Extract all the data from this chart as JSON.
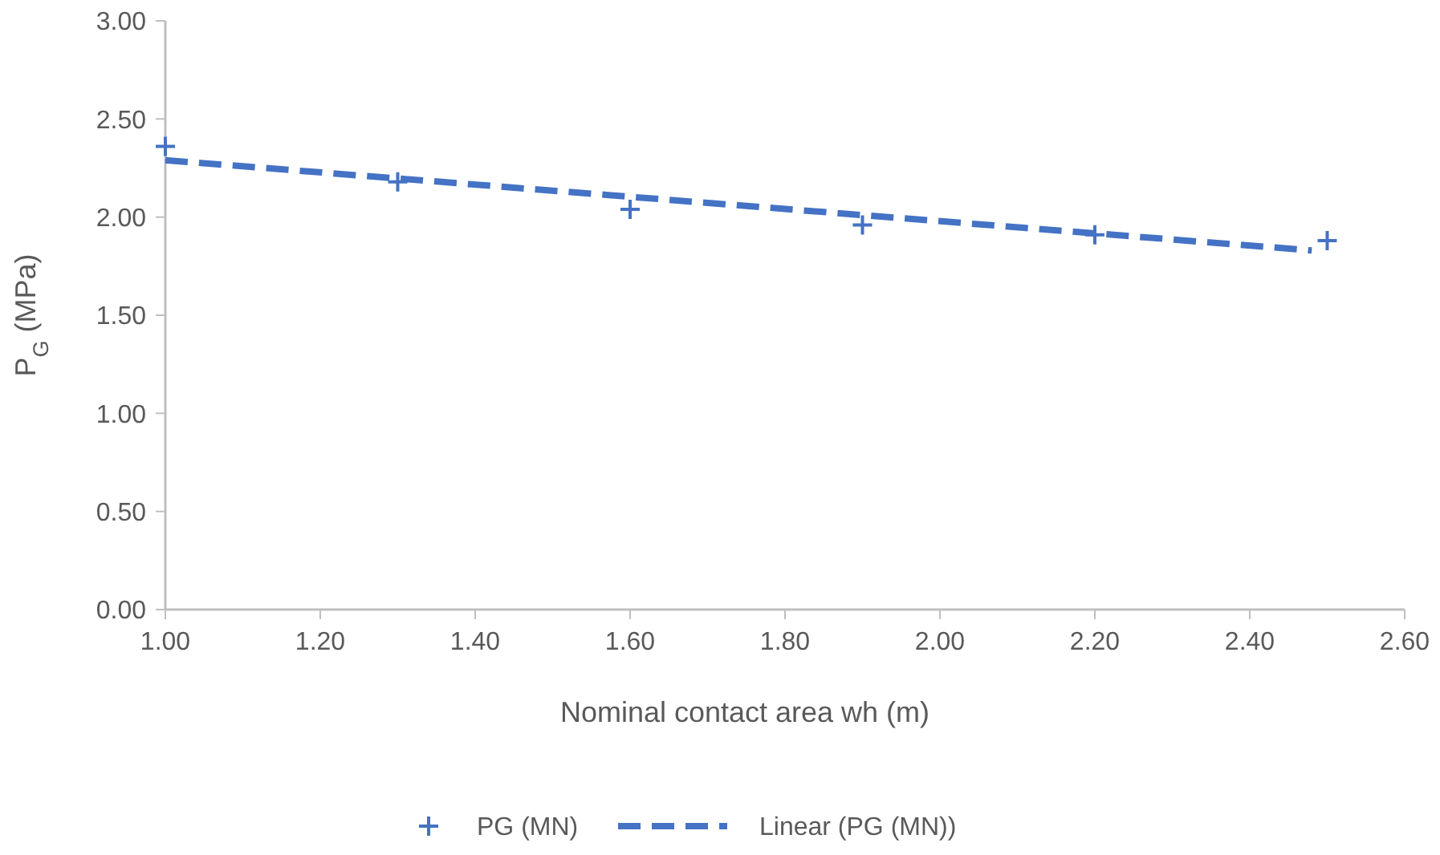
{
  "chart_data": {
    "type": "scatter",
    "xlabel": "Nominal contact area wh (m)",
    "ylabel": "P$_{G}$ (MPa)",
    "xlim": [
      1,
      2.6
    ],
    "xticks": [
      {
        "value": 1,
        "label": "1.00"
      },
      {
        "value": 1.2,
        "label": "1.20"
      },
      {
        "value": 1.4,
        "label": "1.40"
      },
      {
        "value": 1.6,
        "label": "1.60"
      },
      {
        "value": 1.8,
        "label": "1.80"
      },
      {
        "value": 2,
        "label": "2.00"
      },
      {
        "value": 2.2,
        "label": "2.20"
      },
      {
        "value": 2.4,
        "label": "2.40"
      },
      {
        "value": 2.6,
        "label": "2.60"
      }
    ],
    "ylim": [
      0,
      3
    ],
    "yticks": [
      {
        "value": 0,
        "label": "0.00"
      },
      {
        "value": 0.5,
        "label": "0.50"
      },
      {
        "value": 1,
        "label": "1.00"
      },
      {
        "value": 1.5,
        "label": "1.50"
      },
      {
        "value": 2,
        "label": "2.00"
      },
      {
        "value": 2.5,
        "label": "2.50"
      },
      {
        "value": 3,
        "label": "3.00"
      }
    ],
    "grid": false,
    "legend": "bottom",
    "series": [
      {
        "name": "PG (MN)",
        "marker": "cross",
        "color": "#4472c4",
        "x": [
          1,
          1.3,
          1.6,
          1.9,
          2.2,
          2.5
        ],
        "values": [
          2.36,
          2.18,
          2.04,
          1.96,
          1.91,
          1.88
        ]
      },
      {
        "name": "Linear (PG (MN))",
        "type": "line",
        "line_style": "dashed",
        "marker": "none",
        "color": "#4472c4",
        "x": [
          1,
          2.48
        ],
        "values": [
          2.29,
          1.83
        ]
      }
    ]
  }
}
